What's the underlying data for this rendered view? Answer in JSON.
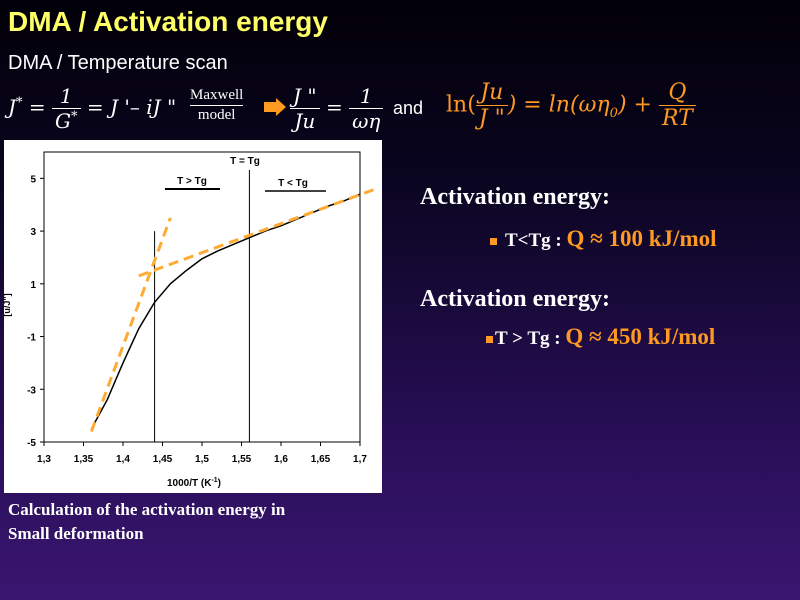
{
  "slide": {
    "title": "DMA / Activation energy",
    "subtitle": "DMA / Temperature scan"
  },
  "formulas": {
    "eq1_lhs": "J",
    "eq1_lhs_sup": "*",
    "eq1_frac_num": "1",
    "eq1_frac_den": "G",
    "eq1_frac_den_sup": "*",
    "eq1_rhs": "= J '– iJ \"",
    "maxwell_top": "Maxwell",
    "maxwell_bottom": "model",
    "eq2_frac_num": "J \"",
    "eq2_frac_den": "Ju",
    "eq2_rhs_num": "1",
    "eq2_rhs_den": "ωη",
    "and_word": "and",
    "eq3_ln1": "ln(",
    "eq3_frac_num": "Ju",
    "eq3_frac_den": "J \"",
    "eq3_mid": ") = ln(ωη",
    "eq3_sub": "0",
    "eq3_end": ") +",
    "eq3_q_num": "Q",
    "eq3_q_den": "RT"
  },
  "activation": [
    {
      "heading": "Activation energy:",
      "condition": "T<Tg :",
      "value": "Q ≈ 100 kJ/mol"
    },
    {
      "heading": "Activation energy:",
      "condition": "T > Tg :",
      "value": "Q ≈ 450 kJ/mol"
    }
  ],
  "caption": {
    "line1": "Calculation of the activation energy in",
    "line2": "Small deformation"
  },
  "colors": {
    "title": "#ffff66",
    "accent": "#ff9922",
    "text": "#ffffff"
  },
  "chart_data": {
    "type": "line",
    "xlabel": "1000/T (K",
    "xlabel_sup": "-1",
    "xlabel_end": ")",
    "ylabel": "[u/J\"]",
    "xlim": [
      1.3,
      1.7
    ],
    "ylim": [
      -5,
      6
    ],
    "x_ticks": [
      "1,3",
      "1,35",
      "1,4",
      "1,45",
      "1,5",
      "1,55",
      "1,6",
      "1,65",
      "1,7"
    ],
    "y_ticks": [
      "5",
      "3",
      "1",
      "-1",
      "-3",
      "-5"
    ],
    "grid": false,
    "annotations": {
      "tg_label": "T = Tg",
      "left_region": "T > Tg",
      "right_region": "T < Tg"
    },
    "vlines": [
      1.44,
      1.56
    ],
    "series": [
      {
        "x": [
          1.36,
          1.38,
          1.4,
          1.42,
          1.44,
          1.46,
          1.48,
          1.5,
          1.52,
          1.54,
          1.56,
          1.58,
          1.6,
          1.62,
          1.64,
          1.66,
          1.68,
          1.7
        ],
        "values": [
          -4.5,
          -3.4,
          -2.0,
          -0.7,
          0.3,
          1.0,
          1.5,
          1.95,
          2.25,
          2.5,
          2.75,
          3.0,
          3.2,
          3.45,
          3.7,
          3.95,
          4.15,
          4.4
        ]
      },
      {
        "x": [
          1.36,
          1.46
        ],
        "values": [
          -4.6,
          3.5
        ]
      },
      {
        "x": [
          1.42,
          1.72
        ],
        "values": [
          1.3,
          4.6
        ]
      }
    ]
  }
}
